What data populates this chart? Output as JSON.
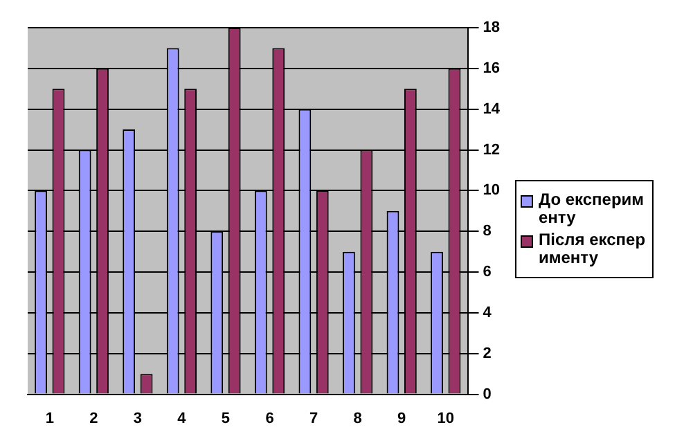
{
  "chart_data": {
    "type": "bar",
    "categories": [
      "1",
      "2",
      "3",
      "4",
      "5",
      "6",
      "7",
      "8",
      "9",
      "10"
    ],
    "series": [
      {
        "name": "До експерименту",
        "color": "#9999ff",
        "values": [
          10,
          12,
          13,
          17,
          8,
          10,
          14,
          7,
          9,
          7
        ]
      },
      {
        "name": "Після експерименту",
        "color": "#993366",
        "values": [
          15,
          16,
          1,
          15,
          18,
          17,
          10,
          12,
          15,
          16
        ]
      }
    ],
    "ylim": [
      0,
      18
    ],
    "yticks": [
      0,
      2,
      4,
      6,
      8,
      10,
      12,
      14,
      16,
      18
    ],
    "grid": "y",
    "legend": "right"
  }
}
